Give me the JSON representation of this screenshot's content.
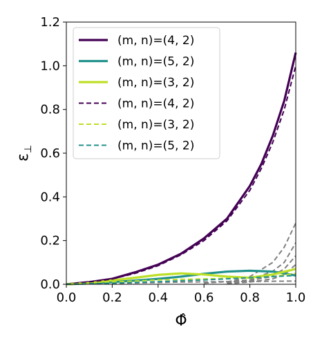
{
  "chart_data": {
    "type": "line",
    "title": "",
    "xlabel": "Φ̂",
    "ylabel": "ε",
    "ylabel_subscript": "⊥",
    "xlim": [
      0.0,
      1.0
    ],
    "ylim": [
      0.0,
      1.2
    ],
    "xticks": [
      "0.0",
      "0.2",
      "0.4",
      "0.6",
      "0.8",
      "1.0"
    ],
    "yticks": [
      "0.0",
      "0.2",
      "0.4",
      "0.6",
      "0.8",
      "1.0",
      "1.2"
    ],
    "grid": false,
    "legend_position": "upper-left",
    "series": [
      {
        "name": "(m, n)=(4, 2)",
        "style": "solid",
        "color": "#440154",
        "x": [
          0,
          0.1,
          0.2,
          0.3,
          0.4,
          0.5,
          0.6,
          0.7,
          0.8,
          0.85,
          0.9,
          0.95,
          1.0
        ],
        "y": [
          0,
          0.01,
          0.025,
          0.055,
          0.09,
          0.14,
          0.21,
          0.3,
          0.45,
          0.55,
          0.68,
          0.84,
          1.06
        ]
      },
      {
        "name": "(m, n)=(5, 2)",
        "style": "solid",
        "color": "#21918c",
        "x": [
          0,
          0.1,
          0.2,
          0.3,
          0.4,
          0.5,
          0.6,
          0.7,
          0.8,
          0.9,
          0.95,
          1.0
        ],
        "y": [
          0,
          0.004,
          0.01,
          0.017,
          0.025,
          0.035,
          0.048,
          0.058,
          0.062,
          0.058,
          0.05,
          0.04
        ]
      },
      {
        "name": "(m, n)=(3, 2)",
        "style": "solid",
        "color": "#bddf26",
        "x": [
          0,
          0.1,
          0.2,
          0.3,
          0.4,
          0.5,
          0.6,
          0.7,
          0.8,
          0.9,
          1.0
        ],
        "y": [
          0,
          0.006,
          0.018,
          0.03,
          0.043,
          0.05,
          0.045,
          0.035,
          0.03,
          0.045,
          0.07
        ]
      },
      {
        "name": "(m, n)=(4, 2)",
        "style": "dashed",
        "color": "#440154",
        "x": [
          0,
          0.1,
          0.2,
          0.3,
          0.4,
          0.5,
          0.6,
          0.7,
          0.8,
          0.85,
          0.9,
          0.95,
          1.0
        ],
        "y": [
          0,
          0.01,
          0.024,
          0.05,
          0.085,
          0.135,
          0.2,
          0.29,
          0.43,
          0.53,
          0.65,
          0.8,
          1.0
        ]
      },
      {
        "name": "(m, n)=(3, 2)",
        "style": "dashed",
        "color": "#bddf26",
        "x": [
          0,
          0.2,
          0.4,
          0.6,
          0.8,
          0.9,
          1.0
        ],
        "y": [
          0,
          0.01,
          0.02,
          0.025,
          0.028,
          0.035,
          0.05
        ]
      },
      {
        "name": "(m, n)=(5, 2)",
        "style": "dashed",
        "color": "#21918c",
        "x": [
          0,
          0.2,
          0.4,
          0.6,
          0.8,
          0.9,
          1.0
        ],
        "y": [
          0,
          0.005,
          0.012,
          0.02,
          0.03,
          0.035,
          0.04
        ]
      }
    ],
    "background_series": [
      {
        "color": "#808080",
        "x": [
          0.7,
          0.8,
          0.9,
          0.95,
          1.0
        ],
        "y": [
          0.01,
          0.035,
          0.1,
          0.17,
          0.28
        ]
      },
      {
        "color": "#808080",
        "x": [
          0.7,
          0.8,
          0.9,
          0.95,
          1.0
        ],
        "y": [
          0.005,
          0.02,
          0.06,
          0.1,
          0.19
        ]
      },
      {
        "color": "#808080",
        "x": [
          0.7,
          0.8,
          0.9,
          0.95,
          1.0
        ],
        "y": [
          0.003,
          0.015,
          0.04,
          0.07,
          0.13
        ]
      },
      {
        "color": "#808080",
        "x": [
          0.7,
          0.8,
          0.9,
          0.95,
          1.0
        ],
        "y": [
          0.002,
          0.01,
          0.025,
          0.045,
          0.09
        ]
      },
      {
        "color": "#808080",
        "x": [
          0.6,
          0.8,
          0.9,
          1.0
        ],
        "y": [
          0.005,
          0.02,
          0.035,
          0.05
        ]
      },
      {
        "color": "#808080",
        "x": [
          0.0,
          0.5,
          1.0
        ],
        "y": [
          0.0,
          0.01,
          0.015
        ]
      }
    ]
  }
}
